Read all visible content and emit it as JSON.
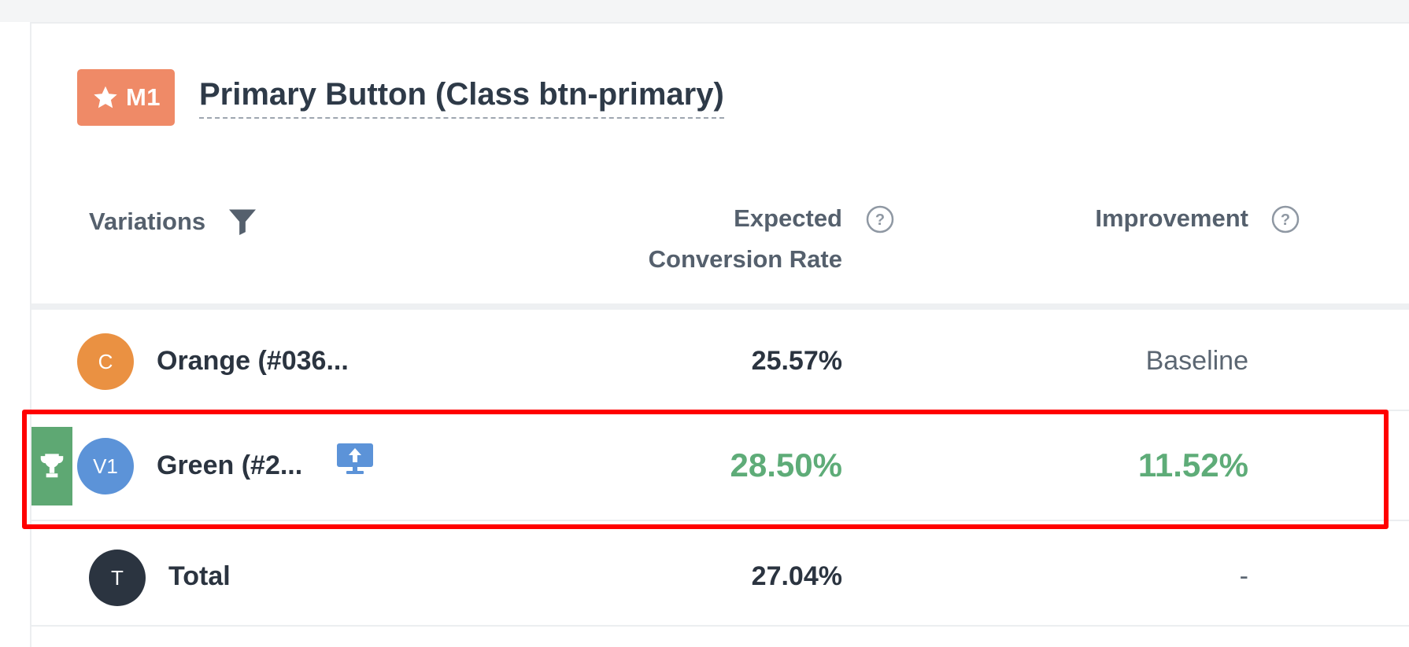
{
  "metric": {
    "badge_label": "M1",
    "title": "Primary Button (Class btn-primary)",
    "colors": {
      "badge": "#ef8a67"
    }
  },
  "table": {
    "headers": {
      "variations": "Variations",
      "expected_line1": "Expected",
      "expected_line2": "Conversion Rate",
      "improvement": "Improvement"
    },
    "rows": [
      {
        "avatar": "C",
        "name": "Orange (#036...",
        "expected": "25.57%",
        "improvement": "Baseline",
        "avatar_color": "#ea9142"
      },
      {
        "avatar": "V1",
        "name": "Green (#2...",
        "expected": "28.50%",
        "improvement": "11.52%",
        "avatar_color": "#5c93d8",
        "winner": true
      },
      {
        "avatar": "T",
        "name": "Total",
        "expected": "27.04%",
        "improvement": "-",
        "avatar_color": "#2b3440"
      }
    ],
    "colors": {
      "positive": "#5eac78",
      "highlight_border": "#ff0000"
    }
  },
  "icons": [
    "star-icon",
    "filter-icon",
    "help-icon",
    "trophy-icon",
    "deploy-icon"
  ]
}
